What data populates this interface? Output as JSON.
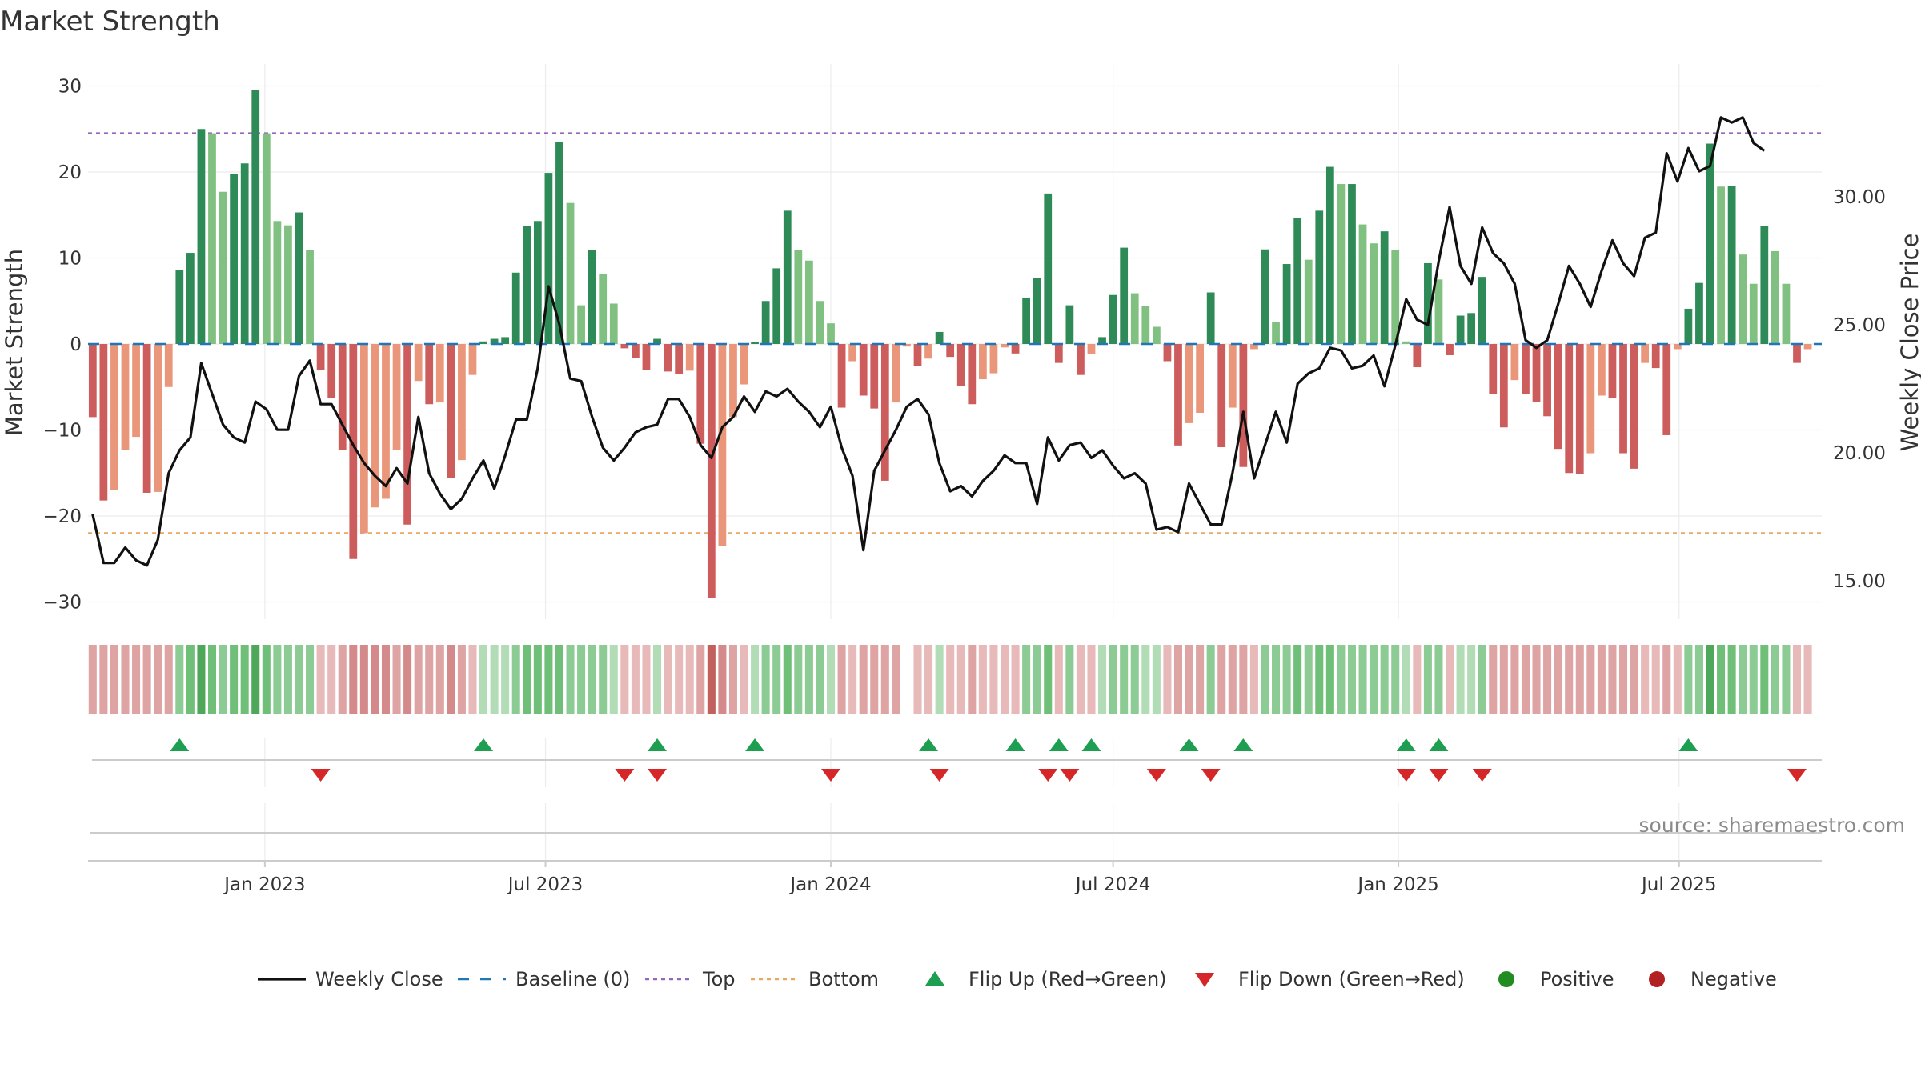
{
  "chart_data": {
    "type": "bar",
    "title": "Market Strength",
    "ylabel": "Market Strength",
    "ylabel_right": "Weekly Close Price",
    "source": "source: sharemaestro.com",
    "ylim": [
      -32,
      32
    ],
    "ylim_right": [
      13.5,
      35.0
    ],
    "yticks": [
      30,
      20,
      10,
      0,
      -10,
      -20,
      -30
    ],
    "yticks_labels": [
      "30",
      "20",
      "10",
      "0",
      "−10",
      "−20",
      "−30"
    ],
    "yticks_right": [
      30,
      25,
      20,
      15
    ],
    "yticks_right_labels": [
      "30.00",
      "25.00",
      "20.00",
      "15.00"
    ],
    "x_start": "2022-09-12",
    "x_range": [
      "2022-09-09",
      "2025-10-01"
    ],
    "week_step_days": 7,
    "xticks": [
      {
        "date": "2023-01-01",
        "label": "Jan 2023"
      },
      {
        "date": "2023-07-01",
        "label": "Jul 2023"
      },
      {
        "date": "2024-01-01",
        "label": "Jan 2024"
      },
      {
        "date": "2024-07-01",
        "label": "Jul 2024"
      },
      {
        "date": "2025-01-01",
        "label": "Jan 2025"
      },
      {
        "date": "2025-07-01",
        "label": "Jul 2025"
      }
    ],
    "top_level": 24.5,
    "bottom_level": -22.0,
    "colors": {
      "pos_strong": "#2e8b57",
      "pos_weak": "#80c080",
      "neg_strong": "#cd5c5c",
      "neg_weak": "#e9967a",
      "line": "#111111",
      "baseline": "#1f77b4",
      "top": "#9467bd",
      "bottom": "#e8a860",
      "flip_up": "#1e9e50",
      "flip_down": "#d62728",
      "positive": "#228b22",
      "negative": "#b22222",
      "grid": "#ececec"
    },
    "strength": [
      -8.5,
      -18.2,
      -17,
      -12.3,
      -10.8,
      -17.3,
      -17.2,
      -5,
      8.6,
      10.6,
      25,
      24.5,
      17.7,
      19.8,
      21,
      29.5,
      24.5,
      14.3,
      13.8,
      15.3,
      10.9,
      -3,
      -6.3,
      -12.3,
      -25,
      -22,
      -19,
      -18,
      -12.3,
      -21,
      -4.3,
      -7,
      -6.8,
      -15.6,
      -13.5,
      -3.6,
      0.3,
      0.6,
      0.8,
      8.3,
      13.7,
      14.3,
      19.9,
      23.5,
      16.4,
      4.5,
      10.9,
      8.1,
      4.7,
      -0.5,
      -1.6,
      -3,
      0.6,
      -3.2,
      -3.5,
      -3.1,
      -11.6,
      -29.5,
      -23.5,
      -8.5,
      -4.7,
      0.2,
      5,
      8.8,
      15.5,
      10.9,
      9.7,
      5,
      2.4,
      -7.4,
      -2,
      -6,
      -7.5,
      -15.9,
      -6.8,
      -0.3,
      -2.6,
      -1.7,
      1.4,
      -1.5,
      -4.9,
      -7,
      -4.1,
      -3.4,
      -0.4,
      -1.1,
      5.4,
      7.7,
      17.5,
      -2.2,
      4.5,
      -3.6,
      -1.2,
      0.8,
      5.7,
      11.2,
      5.9,
      4.4,
      2,
      -2,
      -11.8,
      -9.2,
      -8,
      6,
      -12,
      -7.4,
      -14.3,
      -0.6,
      11,
      2.6,
      9.3,
      14.7,
      9.8,
      15.5,
      20.6,
      18.6,
      18.6,
      13.9,
      11.7,
      13.1,
      10.9,
      0.3,
      -2.7,
      9.4,
      7.5,
      -1.3,
      3.3,
      3.6,
      7.8,
      -5.8,
      -9.7,
      -4.2,
      -5.8,
      -6.7,
      -8.4,
      -12.2,
      -15,
      -15.1,
      -12.7,
      -6,
      -6.3,
      -12.7,
      -14.5,
      -2.2,
      -2.8,
      -10.6,
      -0.6,
      4.1,
      7.1,
      23.3,
      18.3,
      18.4,
      10.4,
      7,
      13.7,
      10.8,
      7,
      -2.2,
      -0.6
    ],
    "close": [
      17.6,
      15.7,
      15.7,
      16.3,
      15.8,
      15.6,
      16.6,
      19.2,
      20.1,
      20.6,
      23.5,
      22.3,
      21.1,
      20.6,
      20.4,
      22,
      21.7,
      20.9,
      20.9,
      23,
      23.6,
      21.9,
      21.9,
      21.1,
      20.3,
      19.6,
      19.1,
      18.7,
      19.4,
      18.8,
      21.4,
      19.2,
      18.4,
      17.8,
      18.2,
      19,
      19.7,
      18.6,
      19.9,
      21.3,
      21.3,
      23.3,
      26.5,
      25,
      22.9,
      22.8,
      21.4,
      20.2,
      19.7,
      20.2,
      20.8,
      21,
      21.1,
      22.1,
      22.1,
      21.4,
      20.3,
      19.8,
      21,
      21.4,
      22.2,
      21.6,
      22.4,
      22.2,
      22.5,
      22,
      21.6,
      21,
      21.8,
      20.2,
      19.1,
      16.2,
      19.3,
      20.1,
      20.9,
      21.8,
      22.1,
      21.5,
      19.6,
      18.5,
      18.7,
      18.3,
      18.9,
      19.3,
      19.9,
      19.6,
      19.6,
      18.0,
      20.6,
      19.7,
      20.3,
      20.4,
      19.8,
      20.1,
      19.5,
      19.0,
      19.2,
      18.8,
      17.0,
      17.1,
      16.9,
      18.8,
      18.0,
      17.2,
      17.2,
      19.2,
      21.6,
      19.0,
      20.3,
      21.6,
      20.4,
      22.7,
      23.1,
      23.3,
      24.1,
      24.0,
      23.3,
      23.4,
      23.8,
      22.6,
      24.2,
      26.0,
      25.2,
      25.0,
      27.5,
      29.6,
      27.3,
      26.6,
      28.8,
      27.8,
      27.4,
      26.6,
      24.4,
      24.1,
      24.4,
      25.8,
      27.3,
      26.6,
      25.7,
      27.1,
      28.3,
      27.4,
      26.9,
      28.4,
      28.6,
      31.7,
      30.6,
      31.9,
      31.0,
      31.2,
      33.1,
      32.9,
      33.1,
      32.1,
      31.8
    ],
    "regime": [
      -2,
      -2,
      -2,
      -2,
      -2,
      -2,
      -2,
      -2,
      2,
      3,
      4,
      3,
      2,
      3,
      3,
      4,
      3,
      2,
      2,
      2,
      2,
      -1,
      -1,
      -2,
      -3,
      -3,
      -3,
      -3,
      -2,
      -3,
      -2,
      -2,
      -2,
      -3,
      -2,
      -1,
      1,
      1,
      1,
      2,
      3,
      3,
      3,
      3,
      2,
      2,
      2,
      2,
      1,
      -1,
      -1,
      -1,
      1,
      -1,
      -1,
      -1,
      -2,
      -4,
      -3,
      -2,
      -1,
      1,
      2,
      2,
      3,
      2,
      2,
      2,
      1,
      -2,
      -1,
      -2,
      -2,
      -2,
      -2,
      null,
      -1,
      -1,
      1,
      -1,
      -1,
      -2,
      -1,
      -1,
      -1,
      -1,
      2,
      2,
      3,
      -1,
      2,
      -1,
      -1,
      1,
      2,
      2,
      2,
      1,
      1,
      -1,
      -2,
      -2,
      -2,
      2,
      -2,
      -2,
      -2,
      -1,
      2,
      2,
      2,
      3,
      2,
      3,
      3,
      2,
      2,
      2,
      2,
      2,
      2,
      1,
      -1,
      2,
      2,
      -1,
      1,
      1,
      2,
      -2,
      -2,
      -2,
      -2,
      -2,
      -2,
      -2,
      -2,
      -2,
      -2,
      -2,
      -2,
      -2,
      -2,
      -1,
      -1,
      -2,
      -1,
      2,
      2,
      4,
      3,
      3,
      2,
      2,
      3,
      2,
      2,
      -1,
      -1
    ],
    "flip_up_weeks": [
      8,
      36,
      52,
      61,
      77,
      85,
      89,
      92,
      101,
      106,
      121,
      124,
      147
    ],
    "flip_down_weeks": [
      21,
      49,
      52,
      68,
      78,
      88,
      90,
      98,
      103,
      121,
      124,
      128,
      157
    ],
    "legend": [
      {
        "kind": "line",
        "label": "Weekly Close"
      },
      {
        "kind": "baseline",
        "label": "Baseline (0)"
      },
      {
        "kind": "top",
        "label": "Top"
      },
      {
        "kind": "bottom",
        "label": "Bottom"
      },
      {
        "kind": "flip_up",
        "label": "Flip Up (Red→Green)"
      },
      {
        "kind": "flip_down",
        "label": "Flip Down (Green→Red)"
      },
      {
        "kind": "positive",
        "label": "Positive"
      },
      {
        "kind": "negative",
        "label": "Negative"
      }
    ]
  }
}
